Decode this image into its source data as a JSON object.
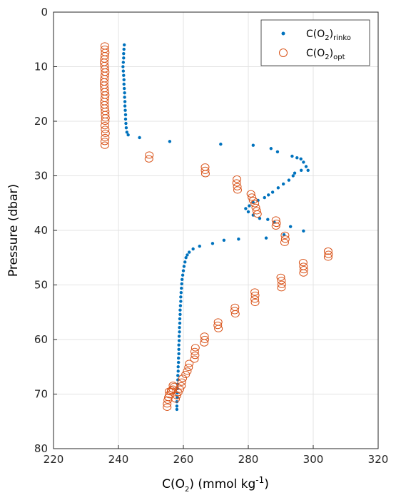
{
  "chart_data": {
    "type": "scatter",
    "xlabel": {
      "pre": "C(O",
      "sub": "2",
      "mid": ") (mmol kg",
      "sup": "-1",
      "post": ")"
    },
    "ylabel": "Pressure (dbar)",
    "xlim": [
      220,
      320
    ],
    "ylim": [
      0,
      80
    ],
    "y_reversed": true,
    "xticks": [
      220,
      240,
      260,
      280,
      300,
      320
    ],
    "yticks": [
      0,
      10,
      20,
      30,
      40,
      50,
      60,
      70,
      80
    ],
    "grid": true,
    "legend_position": "top-right",
    "series": [
      {
        "name": "C(O2)rinko",
        "legend": {
          "pre": "C(O",
          "sub1": "2",
          "mid": ")",
          "sub2": "rinko"
        },
        "marker": "dot",
        "color": "#0072BD",
        "points": [
          [
            241.8,
            6.0
          ],
          [
            241.7,
            6.8
          ],
          [
            241.6,
            7.6
          ],
          [
            241.6,
            8.4
          ],
          [
            241.5,
            9.2
          ],
          [
            241.4,
            10.0
          ],
          [
            241.5,
            10.8
          ],
          [
            241.6,
            11.6
          ],
          [
            241.7,
            12.4
          ],
          [
            241.7,
            13.2
          ],
          [
            241.8,
            14.0
          ],
          [
            241.9,
            14.8
          ],
          [
            241.9,
            15.6
          ],
          [
            242.0,
            16.4
          ],
          [
            242.0,
            17.2
          ],
          [
            242.1,
            18.0
          ],
          [
            242.2,
            18.8
          ],
          [
            242.2,
            19.6
          ],
          [
            242.3,
            20.4
          ],
          [
            242.4,
            21.2
          ],
          [
            242.6,
            22.0
          ],
          [
            243.0,
            22.5
          ],
          [
            246.5,
            23.0
          ],
          [
            255.8,
            23.7
          ],
          [
            271.5,
            24.2
          ],
          [
            281.5,
            24.4
          ],
          [
            287.0,
            25.0
          ],
          [
            289.0,
            25.6
          ],
          [
            293.5,
            26.4
          ],
          [
            295.0,
            26.7
          ],
          [
            296.2,
            26.9
          ],
          [
            297.0,
            27.5
          ],
          [
            297.8,
            28.3
          ],
          [
            298.4,
            29.0
          ],
          [
            296.3,
            29.0
          ],
          [
            294.3,
            29.5
          ],
          [
            293.8,
            30.0
          ],
          [
            292.5,
            30.8
          ],
          [
            290.8,
            31.5
          ],
          [
            289.2,
            32.2
          ],
          [
            287.5,
            33.0
          ],
          [
            286.2,
            33.5
          ],
          [
            285.0,
            34.0
          ],
          [
            283.0,
            34.5
          ],
          [
            281.5,
            34.9
          ],
          [
            280.3,
            35.5
          ],
          [
            279.2,
            36.0
          ],
          [
            280.0,
            36.6
          ],
          [
            281.5,
            37.2
          ],
          [
            283.5,
            37.8
          ],
          [
            286.0,
            38.0
          ],
          [
            288.0,
            38.5
          ],
          [
            293.0,
            39.3
          ],
          [
            297.0,
            40.1
          ],
          [
            291.0,
            40.8
          ],
          [
            285.5,
            41.4
          ],
          [
            277.0,
            41.6
          ],
          [
            272.5,
            41.8
          ],
          [
            269.0,
            42.4
          ],
          [
            265.0,
            42.9
          ],
          [
            263.0,
            43.4
          ],
          [
            261.8,
            44.0
          ],
          [
            261.2,
            44.5
          ],
          [
            260.8,
            45.0
          ],
          [
            260.5,
            45.8
          ],
          [
            260.2,
            46.6
          ],
          [
            260.0,
            47.4
          ],
          [
            259.8,
            48.2
          ],
          [
            259.6,
            49.0
          ],
          [
            259.5,
            49.8
          ],
          [
            259.4,
            50.6
          ],
          [
            259.3,
            51.4
          ],
          [
            259.2,
            52.2
          ],
          [
            259.2,
            53.0
          ],
          [
            259.1,
            53.8
          ],
          [
            259.0,
            54.6
          ],
          [
            259.0,
            55.4
          ],
          [
            258.9,
            56.2
          ],
          [
            258.9,
            57.0
          ],
          [
            258.8,
            57.8
          ],
          [
            258.8,
            58.6
          ],
          [
            258.7,
            59.4
          ],
          [
            258.7,
            60.2
          ],
          [
            258.6,
            61.0
          ],
          [
            258.6,
            61.8
          ],
          [
            258.6,
            62.6
          ],
          [
            258.5,
            63.4
          ],
          [
            258.5,
            64.2
          ],
          [
            258.4,
            65.0
          ],
          [
            258.4,
            65.8
          ],
          [
            258.3,
            66.6
          ],
          [
            258.3,
            67.4
          ],
          [
            258.2,
            68.2
          ],
          [
            258.2,
            69.0
          ],
          [
            258.1,
            69.8
          ],
          [
            258.1,
            70.6
          ],
          [
            258.0,
            71.4
          ],
          [
            258.0,
            72.2
          ],
          [
            258.0,
            72.8
          ]
        ]
      },
      {
        "name": "C(O2)opt",
        "legend": {
          "pre": "C(O",
          "sub1": "2",
          "mid": ")",
          "sub2": "opt"
        },
        "marker": "circle",
        "color": "#D95319",
        "points": [
          [
            235.8,
            6.2
          ],
          [
            235.8,
            6.8
          ],
          [
            235.9,
            7.4
          ],
          [
            235.8,
            8.0
          ],
          [
            235.7,
            8.6
          ],
          [
            235.6,
            9.2
          ],
          [
            235.7,
            9.8
          ],
          [
            235.8,
            10.4
          ],
          [
            235.9,
            11.0
          ],
          [
            235.8,
            11.6
          ],
          [
            235.7,
            12.2
          ],
          [
            235.6,
            12.8
          ],
          [
            235.6,
            13.4
          ],
          [
            235.7,
            14.0
          ],
          [
            235.8,
            14.6
          ],
          [
            235.9,
            15.2
          ],
          [
            235.8,
            15.8
          ],
          [
            235.7,
            16.4
          ],
          [
            235.7,
            17.0
          ],
          [
            235.8,
            17.6
          ],
          [
            235.9,
            18.2
          ],
          [
            235.9,
            18.8
          ],
          [
            236.0,
            19.4
          ],
          [
            235.9,
            20.0
          ],
          [
            235.8,
            20.8
          ],
          [
            235.9,
            21.5
          ],
          [
            236.0,
            22.2
          ],
          [
            235.9,
            23.0
          ],
          [
            235.8,
            23.7
          ],
          [
            235.8,
            24.4
          ],
          [
            249.5,
            26.2
          ],
          [
            249.4,
            26.9
          ],
          [
            266.7,
            28.4
          ],
          [
            266.7,
            29.0
          ],
          [
            266.8,
            29.6
          ],
          [
            276.5,
            30.6
          ],
          [
            276.4,
            31.3
          ],
          [
            276.6,
            32.0
          ],
          [
            276.7,
            32.6
          ],
          [
            280.8,
            33.3
          ],
          [
            281.1,
            33.9
          ],
          [
            281.5,
            34.5
          ],
          [
            282.0,
            35.1
          ],
          [
            282.3,
            35.8
          ],
          [
            282.6,
            36.4
          ],
          [
            282.8,
            37.0
          ],
          [
            288.5,
            38.1
          ],
          [
            288.7,
            38.7
          ],
          [
            288.5,
            39.2
          ],
          [
            291.3,
            40.9
          ],
          [
            291.4,
            41.6
          ],
          [
            291.2,
            42.2
          ],
          [
            304.6,
            43.8
          ],
          [
            304.7,
            44.4
          ],
          [
            304.6,
            44.9
          ],
          [
            296.9,
            45.9
          ],
          [
            297.0,
            46.6
          ],
          [
            297.1,
            47.2
          ],
          [
            297.0,
            47.8
          ],
          [
            290.0,
            48.6
          ],
          [
            290.2,
            49.2
          ],
          [
            290.3,
            49.9
          ],
          [
            290.2,
            50.5
          ],
          [
            282.0,
            51.3
          ],
          [
            282.1,
            51.9
          ],
          [
            282.0,
            52.6
          ],
          [
            282.1,
            53.2
          ],
          [
            275.9,
            54.1
          ],
          [
            275.8,
            54.7
          ],
          [
            276.0,
            55.3
          ],
          [
            270.7,
            56.8
          ],
          [
            270.6,
            57.4
          ],
          [
            270.8,
            58.0
          ],
          [
            266.5,
            59.4
          ],
          [
            266.6,
            60.0
          ],
          [
            266.4,
            60.6
          ],
          [
            263.7,
            61.5
          ],
          [
            263.5,
            62.2
          ],
          [
            263.6,
            62.9
          ],
          [
            263.4,
            63.6
          ],
          [
            261.8,
            64.4
          ],
          [
            261.6,
            65.1
          ],
          [
            261.2,
            65.8
          ],
          [
            260.7,
            66.4
          ],
          [
            259.8,
            67.1
          ],
          [
            259.5,
            67.8
          ],
          [
            259.4,
            68.5
          ],
          [
            258.9,
            69.1
          ],
          [
            258.4,
            69.7
          ],
          [
            258.0,
            70.3
          ],
          [
            257.6,
            70.9
          ],
          [
            257.2,
            68.6
          ],
          [
            256.8,
            69.1
          ],
          [
            256.2,
            69.6
          ],
          [
            255.7,
            70.1
          ],
          [
            255.4,
            70.6
          ],
          [
            255.2,
            71.1
          ],
          [
            255.0,
            71.8
          ],
          [
            255.0,
            72.4
          ],
          [
            256.8,
            68.4
          ],
          [
            256.3,
            69.3
          ],
          [
            255.6,
            69.5
          ]
        ]
      }
    ]
  }
}
